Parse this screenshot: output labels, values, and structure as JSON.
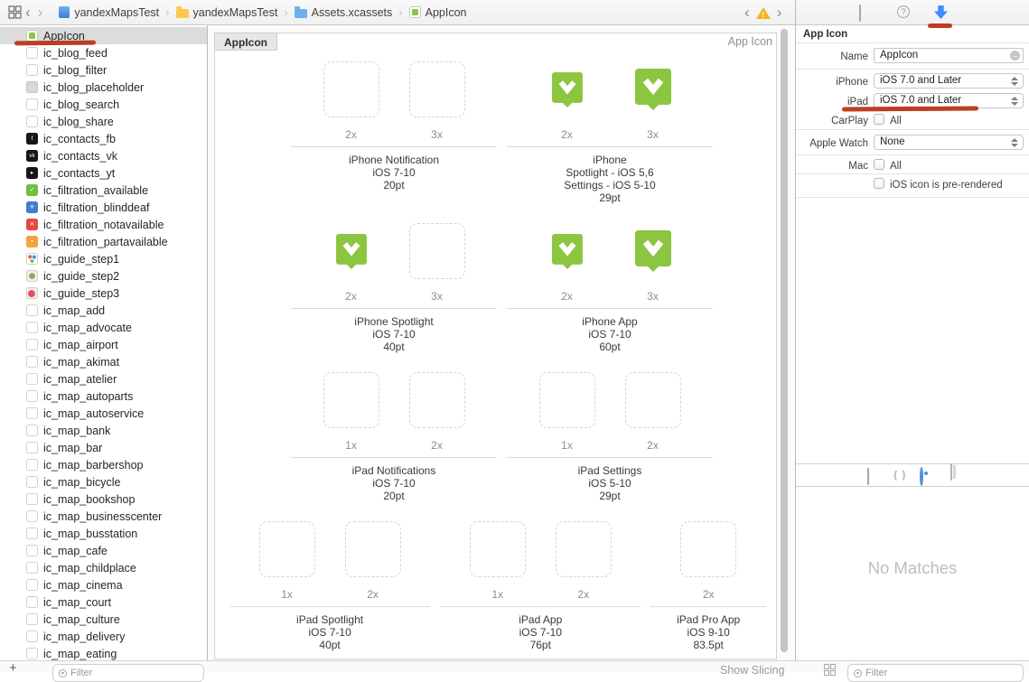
{
  "toolbar": {
    "breadcrumb": [
      {
        "label": "yandexMapsTest",
        "icon": "project"
      },
      {
        "label": "yandexMapsTest",
        "icon": "folder-yellow"
      },
      {
        "label": "Assets.xcassets",
        "icon": "folder-blue"
      },
      {
        "label": "AppIcon",
        "icon": "appicon-chip"
      }
    ]
  },
  "sidebar": {
    "items": [
      {
        "name": "AppIcon",
        "icon": "appicon",
        "selected": true
      },
      {
        "name": "ic_blog_feed",
        "icon": "empty"
      },
      {
        "name": "ic_blog_filter",
        "icon": "empty"
      },
      {
        "name": "ic_blog_placeholder",
        "icon": "gray"
      },
      {
        "name": "ic_blog_search",
        "icon": "empty"
      },
      {
        "name": "ic_blog_share",
        "icon": "empty"
      },
      {
        "name": "ic_contacts_fb",
        "icon": "black",
        "glyph": "f"
      },
      {
        "name": "ic_contacts_vk",
        "icon": "black",
        "glyph": "vk"
      },
      {
        "name": "ic_contacts_yt",
        "icon": "black",
        "glyph": "▸"
      },
      {
        "name": "ic_filtration_available",
        "icon": "green",
        "glyph": "✓"
      },
      {
        "name": "ic_filtration_blinddeaf",
        "icon": "blue",
        "glyph": "✳"
      },
      {
        "name": "ic_filtration_notavailable",
        "icon": "red",
        "glyph": "✕"
      },
      {
        "name": "ic_filtration_partavailable",
        "icon": "orange",
        "glyph": "▪"
      },
      {
        "name": "ic_guide_step1",
        "icon": "multi1"
      },
      {
        "name": "ic_guide_step2",
        "icon": "multi2"
      },
      {
        "name": "ic_guide_step3",
        "icon": "multi3"
      },
      {
        "name": "ic_map_add",
        "icon": "empty"
      },
      {
        "name": "ic_map_advocate",
        "icon": "empty"
      },
      {
        "name": "ic_map_airport",
        "icon": "empty"
      },
      {
        "name": "ic_map_akimat",
        "icon": "empty"
      },
      {
        "name": "ic_map_atelier",
        "icon": "empty"
      },
      {
        "name": "ic_map_autoparts",
        "icon": "empty"
      },
      {
        "name": "ic_map_autoservice",
        "icon": "empty"
      },
      {
        "name": "ic_map_bank",
        "icon": "empty"
      },
      {
        "name": "ic_map_bar",
        "icon": "empty"
      },
      {
        "name": "ic_map_barbershop",
        "icon": "empty"
      },
      {
        "name": "ic_map_bicycle",
        "icon": "empty"
      },
      {
        "name": "ic_map_bookshop",
        "icon": "empty"
      },
      {
        "name": "ic_map_businesscenter",
        "icon": "empty"
      },
      {
        "name": "ic_map_busstation",
        "icon": "empty"
      },
      {
        "name": "ic_map_cafe",
        "icon": "empty"
      },
      {
        "name": "ic_map_childplace",
        "icon": "empty"
      },
      {
        "name": "ic_map_cinema",
        "icon": "empty"
      },
      {
        "name": "ic_map_court",
        "icon": "empty"
      },
      {
        "name": "ic_map_culture",
        "icon": "empty"
      },
      {
        "name": "ic_map_delivery",
        "icon": "empty"
      },
      {
        "name": "ic_map_eating",
        "icon": "empty"
      }
    ],
    "filter_placeholder": "Filter",
    "add_button_label": "+"
  },
  "main": {
    "tab_label": "AppIcon",
    "corner_label": "App Icon",
    "show_slicing_label": "Show Slicing",
    "rows": [
      [
        {
          "title_lines": [
            "iPhone Notification",
            "iOS 7-10",
            "20pt"
          ],
          "slots": [
            {
              "scale": "2x",
              "filled": false
            },
            {
              "scale": "3x",
              "filled": false
            }
          ]
        },
        {
          "title_lines": [
            "iPhone",
            "Spotlight - iOS 5,6",
            "Settings - iOS 5-10",
            "29pt"
          ],
          "slots": [
            {
              "scale": "2x",
              "filled": true
            },
            {
              "scale": "3x",
              "filled": true
            }
          ]
        }
      ],
      [
        {
          "title_lines": [
            "iPhone Spotlight",
            "iOS 7-10",
            "40pt"
          ],
          "slots": [
            {
              "scale": "2x",
              "filled": true
            },
            {
              "scale": "3x",
              "filled": false
            }
          ]
        },
        {
          "title_lines": [
            "iPhone App",
            "iOS 7-10",
            "60pt"
          ],
          "slots": [
            {
              "scale": "2x",
              "filled": true
            },
            {
              "scale": "3x",
              "filled": true
            }
          ]
        }
      ],
      [
        {
          "title_lines": [
            "iPad Notifications",
            "iOS 7-10",
            "20pt"
          ],
          "slots": [
            {
              "scale": "1x",
              "filled": false
            },
            {
              "scale": "2x",
              "filled": false
            }
          ]
        },
        {
          "title_lines": [
            "iPad Settings",
            "iOS 5-10",
            "29pt"
          ],
          "slots": [
            {
              "scale": "1x",
              "filled": false
            },
            {
              "scale": "2x",
              "filled": false
            }
          ]
        }
      ],
      [
        {
          "title_lines": [
            "iPad Spotlight",
            "iOS 7-10",
            "40pt"
          ],
          "slots": [
            {
              "scale": "1x",
              "filled": false
            },
            {
              "scale": "2x",
              "filled": false
            }
          ]
        },
        {
          "title_lines": [
            "iPad App",
            "iOS 7-10",
            "76pt"
          ],
          "slots": [
            {
              "scale": "1x",
              "filled": false
            },
            {
              "scale": "2x",
              "filled": false
            }
          ]
        },
        {
          "title_lines": [
            "iPad Pro App",
            "iOS 9-10",
            "83.5pt"
          ],
          "slots": [
            {
              "scale": "2x",
              "filled": false
            }
          ]
        }
      ]
    ]
  },
  "inspector": {
    "title": "App Icon",
    "name_label": "Name",
    "name_value": "AppIcon",
    "device_rows": [
      {
        "label": "iPhone",
        "type": "dropdown",
        "value": "iOS 7.0 and Later"
      },
      {
        "label": "iPad",
        "type": "dropdown",
        "value": "iOS 7.0 and Later"
      },
      {
        "label": "CarPlay",
        "type": "checkbox",
        "value": "All",
        "checked": false
      },
      {
        "label": "Apple Watch",
        "type": "dropdown",
        "value": "None"
      },
      {
        "label": "Mac",
        "type": "checkbox",
        "value": "All",
        "checked": false
      }
    ],
    "prerendered": {
      "label": "iOS icon is pre-rendered",
      "checked": false
    },
    "library_empty_text": "No Matches",
    "filter_placeholder": "Filter"
  },
  "colors": {
    "accent_green": "#8cc540",
    "annotation_red": "#b93415",
    "selection_blue": "#3d8bfd",
    "warning_yellow": "#f6b21c"
  }
}
